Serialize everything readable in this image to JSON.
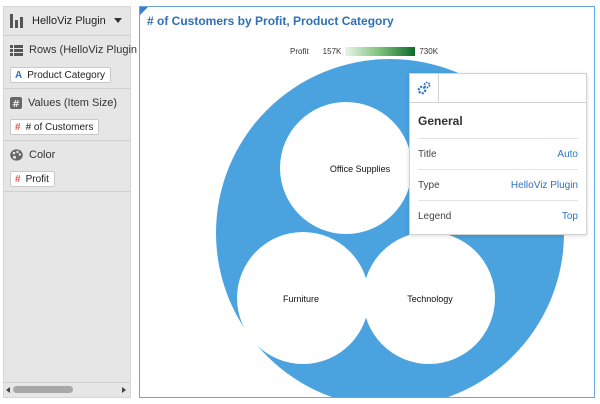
{
  "left_panel": {
    "viz_selector": {
      "label": "HelloViz Plugin"
    },
    "rows": {
      "title": "Rows (HelloViz Plugin Ro",
      "pill_glyph": "A",
      "pill": "Product Category"
    },
    "values": {
      "title": "Values (Item Size)",
      "pill_glyph": "#",
      "pill": "# of Customers"
    },
    "color": {
      "title": "Color",
      "pill_glyph": "#",
      "pill": "Profit"
    }
  },
  "chart": {
    "title": "# of Customers by Profit, Product Category",
    "legend": {
      "label": "Profit",
      "min": "157K",
      "max": "730K"
    },
    "outer_color": "#4aa3df",
    "nodes": [
      "Office Supplies",
      "Furniture",
      "Technology"
    ]
  },
  "properties": {
    "heading": "General",
    "rows": [
      {
        "key": "Title",
        "value": "Auto"
      },
      {
        "key": "Type",
        "value": "HelloViz Plugin"
      },
      {
        "key": "Legend",
        "value": "Top"
      }
    ]
  }
}
